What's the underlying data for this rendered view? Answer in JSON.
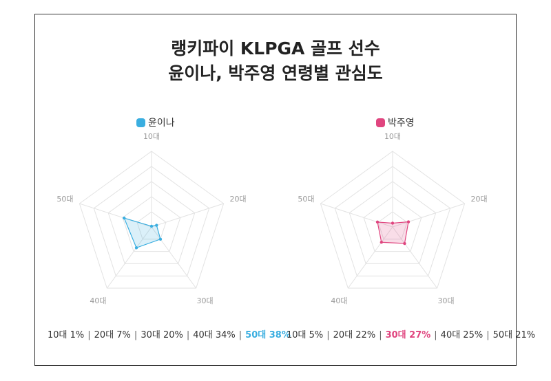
{
  "title_line1": "랭키파이 KLPGA 골프 선수",
  "title_line2": "윤이나, 박주영 연령별 관심도",
  "chart_data": [
    {
      "type": "radar",
      "categories": [
        "10대",
        "20대",
        "30대",
        "40대",
        "50대"
      ],
      "series": [
        {
          "name": "윤이나",
          "values": [
            1,
            7,
            20,
            34,
            38
          ],
          "color": "#3aaee0"
        }
      ],
      "rmax": 100,
      "highlight": "50대 38%",
      "summary_parts": [
        "10대 1%",
        "20대 7%",
        "30대 20%",
        "40대 34%",
        "50대 38%"
      ],
      "highlight_index": 4
    },
    {
      "type": "radar",
      "categories": [
        "10대",
        "20대",
        "30대",
        "40대",
        "50대"
      ],
      "series": [
        {
          "name": "박주영",
          "values": [
            5,
            22,
            27,
            25,
            21
          ],
          "color": "#e0457f"
        }
      ],
      "rmax": 100,
      "highlight": "30대 27%",
      "summary_parts": [
        "10대 5%",
        "20대 22%",
        "30대 27%",
        "40대 25%",
        "50대 21%"
      ],
      "highlight_index": 2
    }
  ]
}
